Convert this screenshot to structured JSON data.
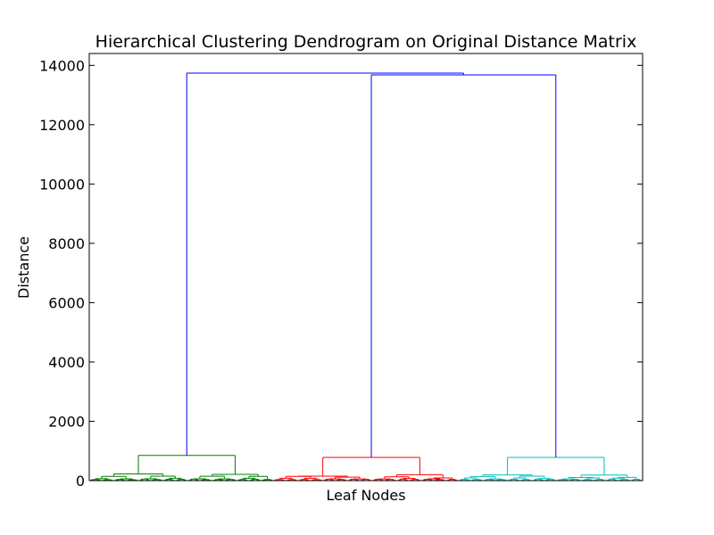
{
  "chart_data": {
    "type": "dendrogram",
    "title": "Hierarchical Clustering Dendrogram on Original Distance Matrix",
    "xlabel": "Leaf Nodes",
    "ylabel": "Distance",
    "ylim": [
      0,
      14400
    ],
    "yticks": [
      0,
      2000,
      4000,
      6000,
      8000,
      10000,
      12000,
      14000
    ],
    "grid": false,
    "link_color": "#0000ff",
    "clusters": [
      {
        "color": "#008000",
        "merge_height": 850,
        "leaf_range": [
          0,
          0.333
        ]
      },
      {
        "color": "#ff0000",
        "merge_height": 780,
        "leaf_range": [
          0.333,
          0.667
        ]
      },
      {
        "color": "#00bfbf",
        "merge_height": 780,
        "leaf_range": [
          0.667,
          1.0
        ]
      }
    ],
    "links": [
      {
        "name": "red-cyan-merge",
        "height": 13680,
        "children": [
          "red",
          "cyan"
        ]
      },
      {
        "name": "root-merge",
        "height": 13740,
        "children": [
          "green",
          "red-cyan-merge"
        ]
      }
    ]
  }
}
